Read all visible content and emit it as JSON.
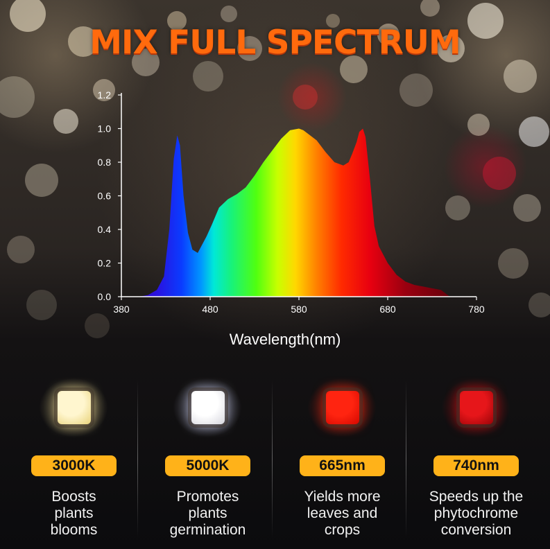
{
  "title": "MIX FULL SPECTRUM",
  "colors": {
    "title": "#ff6a0d",
    "badge": "#ffb219",
    "axis": "#ffffff",
    "background": "#141213"
  },
  "chart_data": {
    "type": "area",
    "title": "",
    "xlabel": "Wavelength(nm)",
    "ylabel": "",
    "xlim": [
      380,
      780
    ],
    "ylim": [
      0,
      1.2
    ],
    "x_ticks": [
      380,
      480,
      580,
      680,
      780
    ],
    "y_ticks": [
      "0.0",
      "0.2",
      "0.4",
      "0.6",
      "0.8",
      "1.0",
      "1.2"
    ],
    "grid": false,
    "fill": "visible-spectrum gradient (color by wavelength)",
    "series": [
      {
        "x": [
          400,
          410,
          420,
          428,
          434,
          439,
          443,
          446,
          450,
          455,
          460,
          466,
          470,
          476,
          482,
          490,
          500,
          510,
          520,
          530,
          540,
          550,
          560,
          570,
          580,
          585,
          590,
          600,
          610,
          620,
          630,
          636,
          640,
          645,
          648,
          652,
          655,
          660,
          665,
          670,
          680,
          690,
          700,
          710,
          720,
          730,
          740,
          745,
          750
        ],
        "y": [
          0.0,
          0.01,
          0.04,
          0.12,
          0.4,
          0.82,
          0.96,
          0.9,
          0.6,
          0.38,
          0.28,
          0.26,
          0.3,
          0.36,
          0.43,
          0.53,
          0.58,
          0.61,
          0.65,
          0.72,
          0.8,
          0.87,
          0.94,
          0.99,
          1.0,
          0.99,
          0.97,
          0.93,
          0.86,
          0.8,
          0.78,
          0.8,
          0.85,
          0.92,
          0.98,
          1.0,
          0.95,
          0.7,
          0.42,
          0.3,
          0.2,
          0.13,
          0.09,
          0.07,
          0.06,
          0.05,
          0.04,
          0.02,
          0.0
        ]
      }
    ]
  },
  "features": [
    {
      "badge": "3000K",
      "description": "Boosts\nplants\nblooms",
      "led": {
        "core": "#fff6cf",
        "edge": "#e8d27a",
        "glow": "#ffeaa0"
      }
    },
    {
      "badge": "5000K",
      "description": "Promotes\nplants\ngermination",
      "led": {
        "core": "#ffffff",
        "edge": "#d6d6de",
        "glow": "#d7dcff"
      }
    },
    {
      "badge": "665nm",
      "description": "Yields more\nleaves and\ncrops",
      "led": {
        "core": "#ff2410",
        "edge": "#d40800",
        "glow": "#ff2a10"
      }
    },
    {
      "badge": "740nm",
      "description": "Speeds up the\nphytochrome\nconversion",
      "led": {
        "core": "#e6161a",
        "edge": "#9a0408",
        "glow": "#d01014"
      }
    }
  ]
}
